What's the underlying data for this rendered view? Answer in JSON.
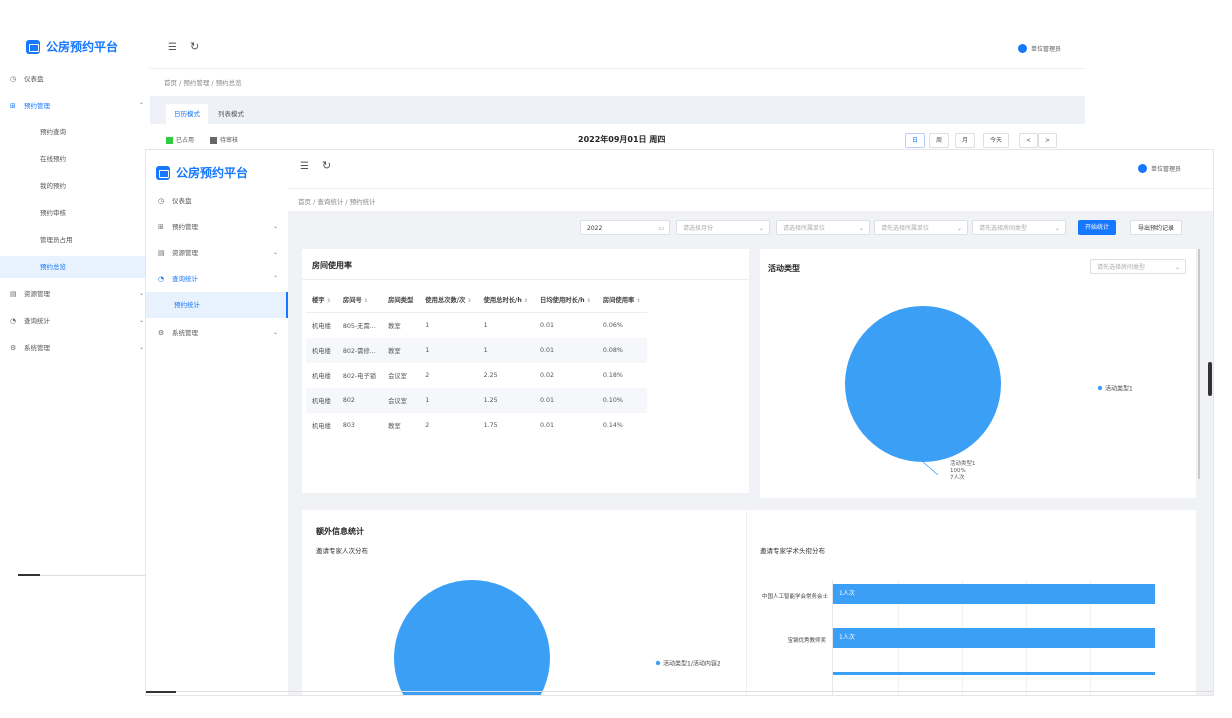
{
  "app": {
    "title": "公房预约平台",
    "user": "单位管理员"
  },
  "back": {
    "breadcrumb": "首页 / 预约管理 / 预约总览",
    "tabs": [
      "日历模式",
      "列表模式"
    ],
    "legend": {
      "occupied": "已占用",
      "pending": "待审核"
    },
    "date_title": "2022年09月01日 周四",
    "view_buttons": [
      "日",
      "周",
      "月",
      "今天"
    ],
    "nav_prev": "<",
    "nav_next": ">",
    "menu": [
      {
        "label": "仪表盘",
        "icon": "dashboard-icon"
      },
      {
        "label": "预约管理",
        "icon": "grid-icon",
        "expanded": true
      },
      {
        "label": "预约查询"
      },
      {
        "label": "在线预约"
      },
      {
        "label": "我的预约"
      },
      {
        "label": "预约审核"
      },
      {
        "label": "管理员占用"
      },
      {
        "label": "预约总览",
        "active": true
      },
      {
        "label": "资源管理",
        "icon": "list-icon"
      },
      {
        "label": "查询统计",
        "icon": "clock-icon"
      },
      {
        "label": "系统管理",
        "icon": "gear-icon"
      }
    ]
  },
  "front": {
    "breadcrumb": "首页 / 查询统计 / 预约统计",
    "menu": [
      {
        "label": "仪表盘",
        "icon": "dashboard-icon"
      },
      {
        "label": "预约管理",
        "icon": "grid-icon"
      },
      {
        "label": "资源管理",
        "icon": "list-icon"
      },
      {
        "label": "查询统计",
        "icon": "clock-icon",
        "expanded": true
      },
      {
        "label": "预约统计",
        "active": true
      },
      {
        "label": "系统管理",
        "icon": "gear-icon"
      }
    ],
    "filters": {
      "year": "2022",
      "month_placeholder": "请选择月份",
      "unit_placeholder": "请选择所属单位",
      "sub_unit_placeholder": "请先选择所属单位",
      "room_type_placeholder": "请先选择房间类型",
      "start_button": "开始统计",
      "export_button": "导出预约记录"
    },
    "usage": {
      "title": "房间使用率",
      "columns": [
        "楼宇",
        "房间号",
        "房间类型",
        "使用总次数/次",
        "使用总时长/h",
        "日均使用时长/h",
        "房间使用率"
      ],
      "rows": [
        [
          "机电楼",
          "805-无需...",
          "教室",
          "1",
          "1",
          "0.01",
          "0.06%"
        ],
        [
          "机电楼",
          "802-需修...",
          "教室",
          "1",
          "1",
          "0.01",
          "0.08%"
        ],
        [
          "机电楼",
          "802-电子锁",
          "会议室",
          "2",
          "2.25",
          "0.02",
          "0.18%"
        ],
        [
          "机电楼",
          "802",
          "会议室",
          "1",
          "1.25",
          "0.01",
          "0.10%"
        ],
        [
          "机电楼",
          "803",
          "教室",
          "2",
          "1.75",
          "0.01",
          "0.14%"
        ]
      ]
    },
    "activity": {
      "title": "活动类型",
      "select_placeholder": "请先选择房间类型",
      "legend": "活动类型1",
      "label_name": "活动类型1",
      "label_pct": "100%",
      "label_count": "7人次",
      "color": "#3a9ff5"
    },
    "extra": {
      "title": "额外信息统计",
      "left_subtitle": "邀请专家人次分布",
      "left_legend": "活动类型1/活动内容2",
      "right_subtitle": "邀请专家学术头衔分布",
      "bars": [
        {
          "label": "中国人工智能学会常务会士",
          "value_text": "1人次"
        },
        {
          "label": "宝钢优秀教师奖",
          "value_text": "1人次"
        }
      ]
    }
  },
  "chart_data": [
    {
      "type": "pie",
      "labels": [
        "活动类型1"
      ],
      "values": [
        7
      ],
      "annotations": [
        "活动类型1",
        "100%",
        "7人次"
      ]
    },
    {
      "type": "pie",
      "labels": [
        "活动类型1/活动内容2"
      ],
      "values": [
        1
      ]
    },
    {
      "type": "bar",
      "orientation": "horizontal",
      "categories": [
        "中国人工智能学会常务会士",
        "宝钢优秀教师奖"
      ],
      "values": [
        1,
        1
      ],
      "data_labels": [
        "1人次",
        "1人次"
      ]
    }
  ]
}
